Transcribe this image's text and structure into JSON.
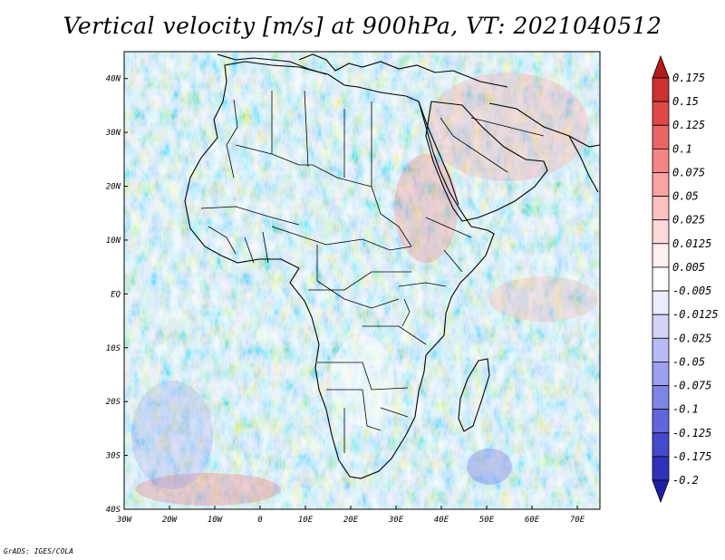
{
  "title": "Vertical velocity [m/s] at 900hPa, VT: 2021040512",
  "credit": "GrADS: IGES/COLA",
  "map": {
    "lon_range": [
      -30,
      75
    ],
    "lat_range": [
      -40,
      45
    ],
    "lon_ticks": [
      {
        "value": -30,
        "label": "30W"
      },
      {
        "value": -20,
        "label": "20W"
      },
      {
        "value": -10,
        "label": "10W"
      },
      {
        "value": 0,
        "label": "0"
      },
      {
        "value": 10,
        "label": "10E"
      },
      {
        "value": 20,
        "label": "20E"
      },
      {
        "value": 30,
        "label": "30E"
      },
      {
        "value": 40,
        "label": "40E"
      },
      {
        "value": 50,
        "label": "50E"
      },
      {
        "value": 60,
        "label": "60E"
      },
      {
        "value": 70,
        "label": "70E"
      }
    ],
    "lat_ticks": [
      {
        "value": 40,
        "label": "40N"
      },
      {
        "value": 30,
        "label": "30N"
      },
      {
        "value": 20,
        "label": "20N"
      },
      {
        "value": 10,
        "label": "10N"
      },
      {
        "value": 0,
        "label": "EQ"
      },
      {
        "value": -10,
        "label": "10S"
      },
      {
        "value": -20,
        "label": "20S"
      },
      {
        "value": -30,
        "label": "30S"
      },
      {
        "value": -40,
        "label": "40S"
      }
    ]
  },
  "colorbar": {
    "labels": [
      "0.175",
      "0.15",
      "0.125",
      "0.1",
      "0.075",
      "0.05",
      "0.025",
      "0.0125",
      "0.005",
      "-0.005",
      "-0.0125",
      "-0.025",
      "-0.05",
      "-0.075",
      "-0.1",
      "-0.125",
      "-0.175",
      "-0.2"
    ],
    "colors": [
      "#b41c1c",
      "#cf3030",
      "#e04848",
      "#ec6565",
      "#f48585",
      "#f8a4a4",
      "#fbc0c0",
      "#fdd9d9",
      "#fff0f0",
      "#ffffff",
      "#ecedfc",
      "#d2d4f8",
      "#b7baf3",
      "#9ca0ee",
      "#7f84e6",
      "#6166dc",
      "#4549cf",
      "#2f31bd",
      "#1e1ea6"
    ]
  }
}
